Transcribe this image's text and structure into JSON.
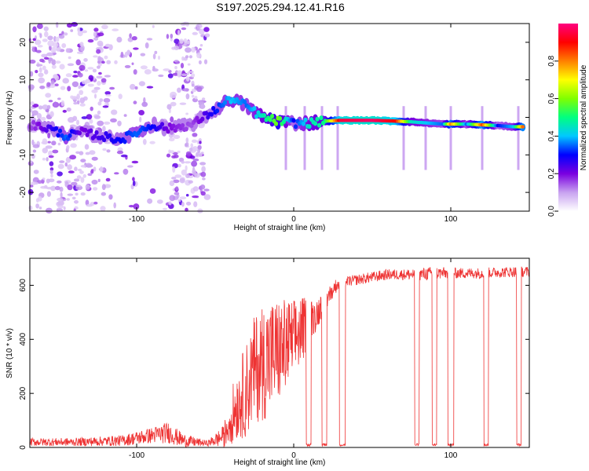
{
  "chart_data": [
    {
      "type": "heatmap",
      "title": "S197.2025.294.12.41.R16",
      "xlabel": "Height of straight line (km)",
      "ylabel": "Frequency (Hz)",
      "xlim": [
        -168,
        150
      ],
      "ylim": [
        -25,
        25
      ],
      "xticks": [
        -100,
        0,
        100
      ],
      "xtick_labels": [
        "-100",
        "0",
        "100"
      ],
      "yticks": [
        -20,
        -10,
        0,
        10,
        20
      ],
      "ytick_labels": [
        "-20",
        "-10",
        "0",
        "10",
        "20"
      ],
      "colorbar": {
        "label": "Normalized spectral amplitude",
        "range": [
          0.0,
          1.0
        ],
        "ticks": [
          0.0,
          0.2,
          0.4,
          0.6,
          0.8
        ],
        "tick_labels": [
          "0.0",
          "0.2",
          "0.4",
          "0.6",
          "0.8"
        ],
        "colormap": [
          "#ffffff",
          "#c8a2f0",
          "#7a00e0",
          "#0000ff",
          "#00c8ff",
          "#00ff80",
          "#80ff00",
          "#ffff00",
          "#ff8000",
          "#ff0000",
          "#ff0080"
        ]
      },
      "noise_band_x": [
        -168,
        -55
      ],
      "ridge": [
        {
          "x": -168,
          "y": -2,
          "a": 0.15
        },
        {
          "x": -155,
          "y": -3,
          "a": 0.25
        },
        {
          "x": -145,
          "y": -5,
          "a": 0.35
        },
        {
          "x": -135,
          "y": -4,
          "a": 0.2
        },
        {
          "x": -110,
          "y": -6,
          "a": 0.3
        },
        {
          "x": -100,
          "y": -4,
          "a": 0.35
        },
        {
          "x": -90,
          "y": -2,
          "a": 0.3
        },
        {
          "x": -80,
          "y": -3,
          "a": 0.2
        },
        {
          "x": -65,
          "y": -2,
          "a": 0.15
        },
        {
          "x": -50,
          "y": 2,
          "a": 0.3
        },
        {
          "x": -40,
          "y": 5,
          "a": 0.4
        },
        {
          "x": -30,
          "y": 3,
          "a": 0.35
        },
        {
          "x": -20,
          "y": 0,
          "a": 0.45
        },
        {
          "x": -10,
          "y": -1,
          "a": 0.6
        },
        {
          "x": 0,
          "y": -1.5,
          "a": 0.3
        },
        {
          "x": 10,
          "y": -1.5,
          "a": 0.45
        },
        {
          "x": 20,
          "y": -1,
          "a": 0.5
        },
        {
          "x": 30,
          "y": -0.8,
          "a": 0.95
        },
        {
          "x": 50,
          "y": -0.8,
          "a": 0.98
        },
        {
          "x": 65,
          "y": -1,
          "a": 0.9
        },
        {
          "x": 75,
          "y": -1.2,
          "a": 0.45
        },
        {
          "x": 85,
          "y": -1.5,
          "a": 0.4
        },
        {
          "x": 95,
          "y": -1.8,
          "a": 0.35
        },
        {
          "x": 100,
          "y": -1.8,
          "a": 0.8
        },
        {
          "x": 110,
          "y": -1.8,
          "a": 0.35
        },
        {
          "x": 120,
          "y": -2,
          "a": 0.85
        },
        {
          "x": 130,
          "y": -2.2,
          "a": 0.3
        },
        {
          "x": 140,
          "y": -2.5,
          "a": 0.4
        },
        {
          "x": 147,
          "y": -2.5,
          "a": 0.9
        }
      ],
      "vertical_streaks_x": [
        -5,
        7,
        18,
        28,
        70,
        84,
        100,
        120,
        143
      ]
    },
    {
      "type": "line",
      "title": "",
      "xlabel": "Height of straight line (km)",
      "ylabel": "SNR (10 * v/v)",
      "xlim": [
        -168,
        150
      ],
      "ylim": [
        0,
        700
      ],
      "xticks": [
        -100,
        0,
        100
      ],
      "xtick_labels": [
        "-100",
        "0",
        "100"
      ],
      "yticks": [
        0,
        200,
        400,
        600
      ],
      "ytick_labels": [
        "0",
        "200",
        "400",
        "600"
      ],
      "color": "#ee3333",
      "series": [
        {
          "name": "SNR",
          "x": [
            -168,
            -140,
            -110,
            -90,
            -80,
            -70,
            -55,
            -45,
            -40,
            -35,
            -30,
            -25,
            -20,
            -15,
            -10,
            -5,
            0,
            5,
            8,
            10,
            15,
            20,
            25,
            30,
            40,
            50,
            60,
            70,
            80,
            90,
            100,
            110,
            120,
            130,
            140,
            150
          ],
          "y": [
            20,
            20,
            25,
            45,
            55,
            25,
            15,
            40,
            130,
            200,
            250,
            330,
            360,
            380,
            395,
            410,
            430,
            460,
            470,
            480,
            510,
            550,
            590,
            610,
            620,
            630,
            640,
            640,
            640,
            645,
            645,
            645,
            645,
            648,
            650,
            650
          ],
          "noise": [
            15,
            15,
            20,
            30,
            40,
            25,
            10,
            40,
            100,
            140,
            180,
            200,
            220,
            220,
            200,
            180,
            150,
            130,
            100,
            80,
            60,
            40,
            30,
            20,
            20,
            20,
            20,
            20,
            25,
            25,
            20,
            20,
            20,
            20,
            20,
            20
          ]
        }
      ],
      "dropouts_x": [
        [
          8,
          11
        ],
        [
          18,
          21
        ],
        [
          29,
          33
        ],
        [
          77,
          80
        ],
        [
          88,
          91
        ],
        [
          98,
          102
        ],
        [
          121,
          124
        ],
        [
          142,
          145
        ]
      ]
    }
  ]
}
